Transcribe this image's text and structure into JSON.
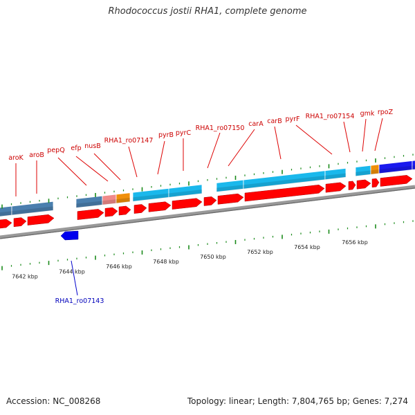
{
  "title": "Rhodococcus jostii RHA1, complete genome",
  "footer": {
    "accession": "Accession: NC_008268",
    "summary": "Topology: linear; Length: 7,804,765 bp; Genes: 7,274"
  },
  "colors": {
    "forward_gene": "#ff0000",
    "reverse_gene": "#0000ee",
    "forward_label": "#cc0000",
    "reverse_label": "#0000bb",
    "backbone": "#888888",
    "tick": "#1a8a1a",
    "cog_blue": "#4a7fae",
    "cog_cyan": "#1ab8ec",
    "cog_pink": "#f08a8a",
    "cog_orange": "#f0900a",
    "cog_darkblue": "#1a1aee"
  },
  "scale": {
    "labels": [
      "7642 kbp",
      "7644 kbp",
      "7646 kbp",
      "7648 kbp",
      "7650 kbp",
      "7652 kbp",
      "7654 kbp",
      "7656 kbp"
    ]
  },
  "genes": [
    {
      "name": "aroK",
      "strand": "+"
    },
    {
      "name": "aroB",
      "strand": "+"
    },
    {
      "name": "pepQ",
      "strand": "+"
    },
    {
      "name": "efp",
      "strand": "+"
    },
    {
      "name": "nusB",
      "strand": "+"
    },
    {
      "name": "RHA1_ro07147",
      "strand": "+"
    },
    {
      "name": "pyrB",
      "strand": "+"
    },
    {
      "name": "pyrC",
      "strand": "+"
    },
    {
      "name": "RHA1_ro07150",
      "strand": "+"
    },
    {
      "name": "carA",
      "strand": "+"
    },
    {
      "name": "carB",
      "strand": "+"
    },
    {
      "name": "pyrF",
      "strand": "+"
    },
    {
      "name": "RHA1_ro07154",
      "strand": "+"
    },
    {
      "name": "gmk",
      "strand": "+"
    },
    {
      "name": "rpoZ",
      "strand": "+"
    },
    {
      "name": "RHA1_ro07143",
      "strand": "-"
    }
  ]
}
